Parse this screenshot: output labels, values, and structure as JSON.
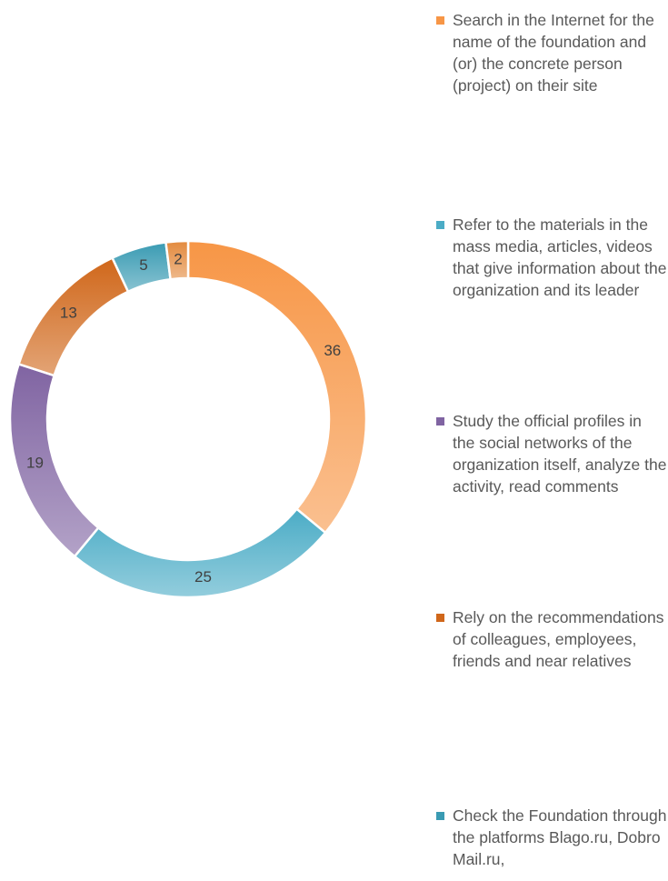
{
  "chart_data": {
    "type": "donut",
    "categories": [
      "Search in the Internet for the name of the foundation and (or) the concrete person (project) on their site",
      "Refer to the materials in the mass media, articles, videos that give information about the organization and its leader",
      "Study the official profiles in the social networks of the organization itself, analyze the activity, read comments",
      "Rely on the recommendations of colleagues, employees, friends and near relatives",
      "Check the Foundation through the platforms Blago.ru, Dobro Mail.ru,",
      null
    ],
    "values": [
      36,
      25,
      19,
      13,
      5,
      2
    ],
    "colors": [
      "#f79646",
      "#4bacc6",
      "#8064a2",
      "#d0671a",
      "#3a9bb3",
      "#e38a3e"
    ],
    "legend": "right"
  }
}
